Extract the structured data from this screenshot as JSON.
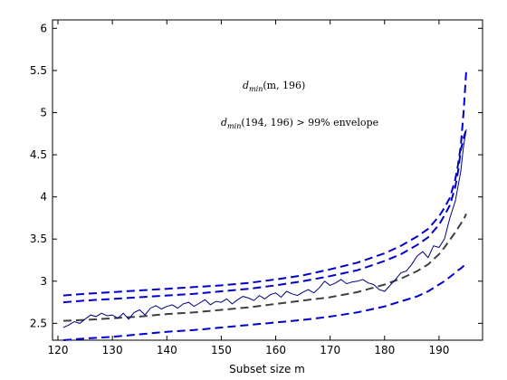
{
  "chart_data": {
    "type": "line",
    "xlabel": "Subset size m",
    "ylabel": "",
    "xlim": [
      119,
      198
    ],
    "ylim": [
      2.3,
      6.1
    ],
    "xticks": [
      120,
      130,
      140,
      150,
      160,
      170,
      180,
      190
    ],
    "yticks": [
      2.5,
      3,
      3.5,
      4,
      4.5,
      5,
      5.5,
      6
    ],
    "grid": false,
    "annotations": [
      {
        "id": "a1",
        "prefix": "d",
        "sub": "min",
        "text": "(m, 196)"
      },
      {
        "id": "a2",
        "prefix": "d",
        "sub": "min",
        "text": "(194, 196) > 99% envelope"
      }
    ],
    "x": [
      121,
      125,
      130,
      135,
      140,
      145,
      150,
      155,
      160,
      165,
      170,
      175,
      180,
      183,
      186,
      188,
      190,
      191,
      192,
      193,
      193.5,
      194,
      194.5,
      195
    ],
    "series": [
      {
        "style": "dashed",
        "color": "#0000cc",
        "values": [
          2.83,
          2.85,
          2.87,
          2.89,
          2.91,
          2.93,
          2.95,
          2.98,
          3.02,
          3.07,
          3.14,
          3.22,
          3.33,
          3.42,
          3.53,
          3.62,
          3.77,
          3.87,
          3.99,
          4.21,
          4.38,
          4.6,
          5.0,
          5.5
        ]
      },
      {
        "style": "dashed",
        "color": "#0000cc",
        "values": [
          2.75,
          2.77,
          2.79,
          2.81,
          2.83,
          2.85,
          2.88,
          2.91,
          2.95,
          3.0,
          3.06,
          3.13,
          3.24,
          3.32,
          3.43,
          3.52,
          3.67,
          3.78,
          3.9,
          4.12,
          4.3,
          4.55,
          4.7,
          4.8
        ]
      },
      {
        "style": "dashed",
        "color": "#404040",
        "values": [
          2.53,
          2.54,
          2.56,
          2.58,
          2.61,
          2.63,
          2.66,
          2.69,
          2.73,
          2.77,
          2.81,
          2.87,
          2.96,
          3.03,
          3.12,
          3.2,
          3.32,
          3.4,
          3.49,
          3.58,
          3.63,
          3.68,
          3.73,
          3.8
        ]
      },
      {
        "style": "dashed",
        "color": "#0000cc",
        "values": [
          2.3,
          2.32,
          2.34,
          2.37,
          2.4,
          2.42,
          2.45,
          2.48,
          2.51,
          2.54,
          2.58,
          2.63,
          2.7,
          2.76,
          2.82,
          2.88,
          2.96,
          3.0,
          3.05,
          3.1,
          3.13,
          3.15,
          3.18,
          3.2
        ]
      }
    ],
    "observed": {
      "style": "solid",
      "color": "#000080",
      "x": [
        121,
        122,
        123,
        124,
        125,
        126,
        127,
        128,
        129,
        130,
        131,
        132,
        133,
        134,
        135,
        136,
        137,
        138,
        139,
        140,
        141,
        142,
        143,
        144,
        145,
        146,
        147,
        148,
        149,
        150,
        151,
        152,
        153,
        154,
        155,
        156,
        157,
        158,
        159,
        160,
        161,
        162,
        163,
        164,
        165,
        166,
        167,
        168,
        169,
        170,
        171,
        172,
        173,
        174,
        175,
        176,
        177,
        178,
        179,
        180,
        181,
        182,
        183,
        184,
        185,
        186,
        187,
        188,
        189,
        190,
        191,
        192,
        193,
        194,
        194.5,
        195
      ],
      "values": [
        2.45,
        2.48,
        2.52,
        2.5,
        2.55,
        2.6,
        2.58,
        2.62,
        2.59,
        2.6,
        2.56,
        2.62,
        2.55,
        2.63,
        2.66,
        2.6,
        2.68,
        2.71,
        2.67,
        2.7,
        2.72,
        2.68,
        2.73,
        2.75,
        2.7,
        2.74,
        2.78,
        2.72,
        2.76,
        2.75,
        2.79,
        2.73,
        2.78,
        2.82,
        2.8,
        2.77,
        2.83,
        2.79,
        2.84,
        2.86,
        2.81,
        2.88,
        2.85,
        2.83,
        2.87,
        2.9,
        2.86,
        2.92,
        3.0,
        2.95,
        2.98,
        3.02,
        2.97,
        2.99,
        3.0,
        3.02,
        2.98,
        2.96,
        2.9,
        2.88,
        2.95,
        3.02,
        3.1,
        3.12,
        3.2,
        3.3,
        3.35,
        3.28,
        3.42,
        3.4,
        3.5,
        3.75,
        3.95,
        4.3,
        4.6,
        4.8
      ]
    }
  }
}
